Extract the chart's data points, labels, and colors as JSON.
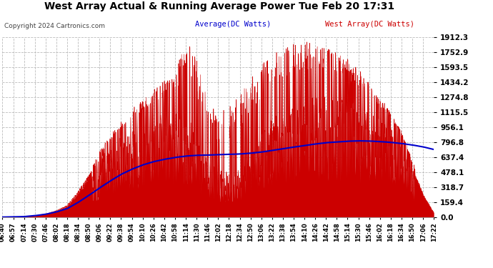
{
  "title": "West Array Actual & Running Average Power Tue Feb 20 17:31",
  "copyright": "Copyright 2024 Cartronics.com",
  "legend_average": "Average(DC Watts)",
  "legend_west": "West Array(DC Watts)",
  "ymin": 0.0,
  "ymax": 1912.3,
  "yticks": [
    0.0,
    159.4,
    318.7,
    478.1,
    637.4,
    796.8,
    956.1,
    1115.5,
    1274.8,
    1434.2,
    1593.5,
    1752.9,
    1912.3
  ],
  "bg_color": "#ffffff",
  "grid_color": "#bbbbbb",
  "fill_color": "#cc0000",
  "line_color": "#0000cc",
  "title_color": "#000000",
  "copyright_color": "#000000",
  "legend_avg_color": "#0000cc",
  "legend_west_color": "#cc0000",
  "x_times": [
    "06:40",
    "06:57",
    "07:14",
    "07:30",
    "07:46",
    "08:02",
    "08:18",
    "08:34",
    "08:50",
    "09:06",
    "09:22",
    "09:38",
    "09:54",
    "10:10",
    "10:26",
    "10:42",
    "10:58",
    "11:14",
    "11:30",
    "11:46",
    "12:02",
    "12:18",
    "12:34",
    "12:50",
    "13:06",
    "13:22",
    "13:38",
    "13:54",
    "14:10",
    "14:26",
    "14:42",
    "14:58",
    "15:14",
    "15:30",
    "15:46",
    "16:02",
    "16:18",
    "16:34",
    "16:50",
    "17:06",
    "17:22"
  ],
  "avg_values": [
    0,
    2,
    5,
    15,
    30,
    55,
    90,
    155,
    230,
    310,
    385,
    455,
    510,
    555,
    590,
    615,
    635,
    650,
    658,
    660,
    665,
    668,
    672,
    680,
    692,
    710,
    728,
    745,
    762,
    778,
    792,
    800,
    808,
    812,
    810,
    804,
    796,
    784,
    768,
    748,
    720
  ],
  "base_envelope": [
    2,
    3,
    5,
    15,
    35,
    70,
    130,
    280,
    450,
    620,
    760,
    870,
    950,
    1010,
    1060,
    1100,
    1120,
    1130,
    900,
    650,
    500,
    480,
    550,
    700,
    900,
    1050,
    1150,
    1200,
    1250,
    1280,
    1300,
    1270,
    1240,
    1200,
    1150,
    1080,
    980,
    820,
    550,
    250,
    50
  ],
  "spike_envelope": [
    0,
    0,
    0,
    0,
    0,
    0,
    0,
    20,
    40,
    80,
    120,
    160,
    200,
    250,
    300,
    350,
    400,
    780,
    780,
    600,
    600,
    700,
    750,
    780,
    750,
    720,
    680,
    650,
    620,
    580,
    550,
    500,
    450,
    380,
    300,
    200,
    150,
    100,
    60,
    20,
    0
  ]
}
